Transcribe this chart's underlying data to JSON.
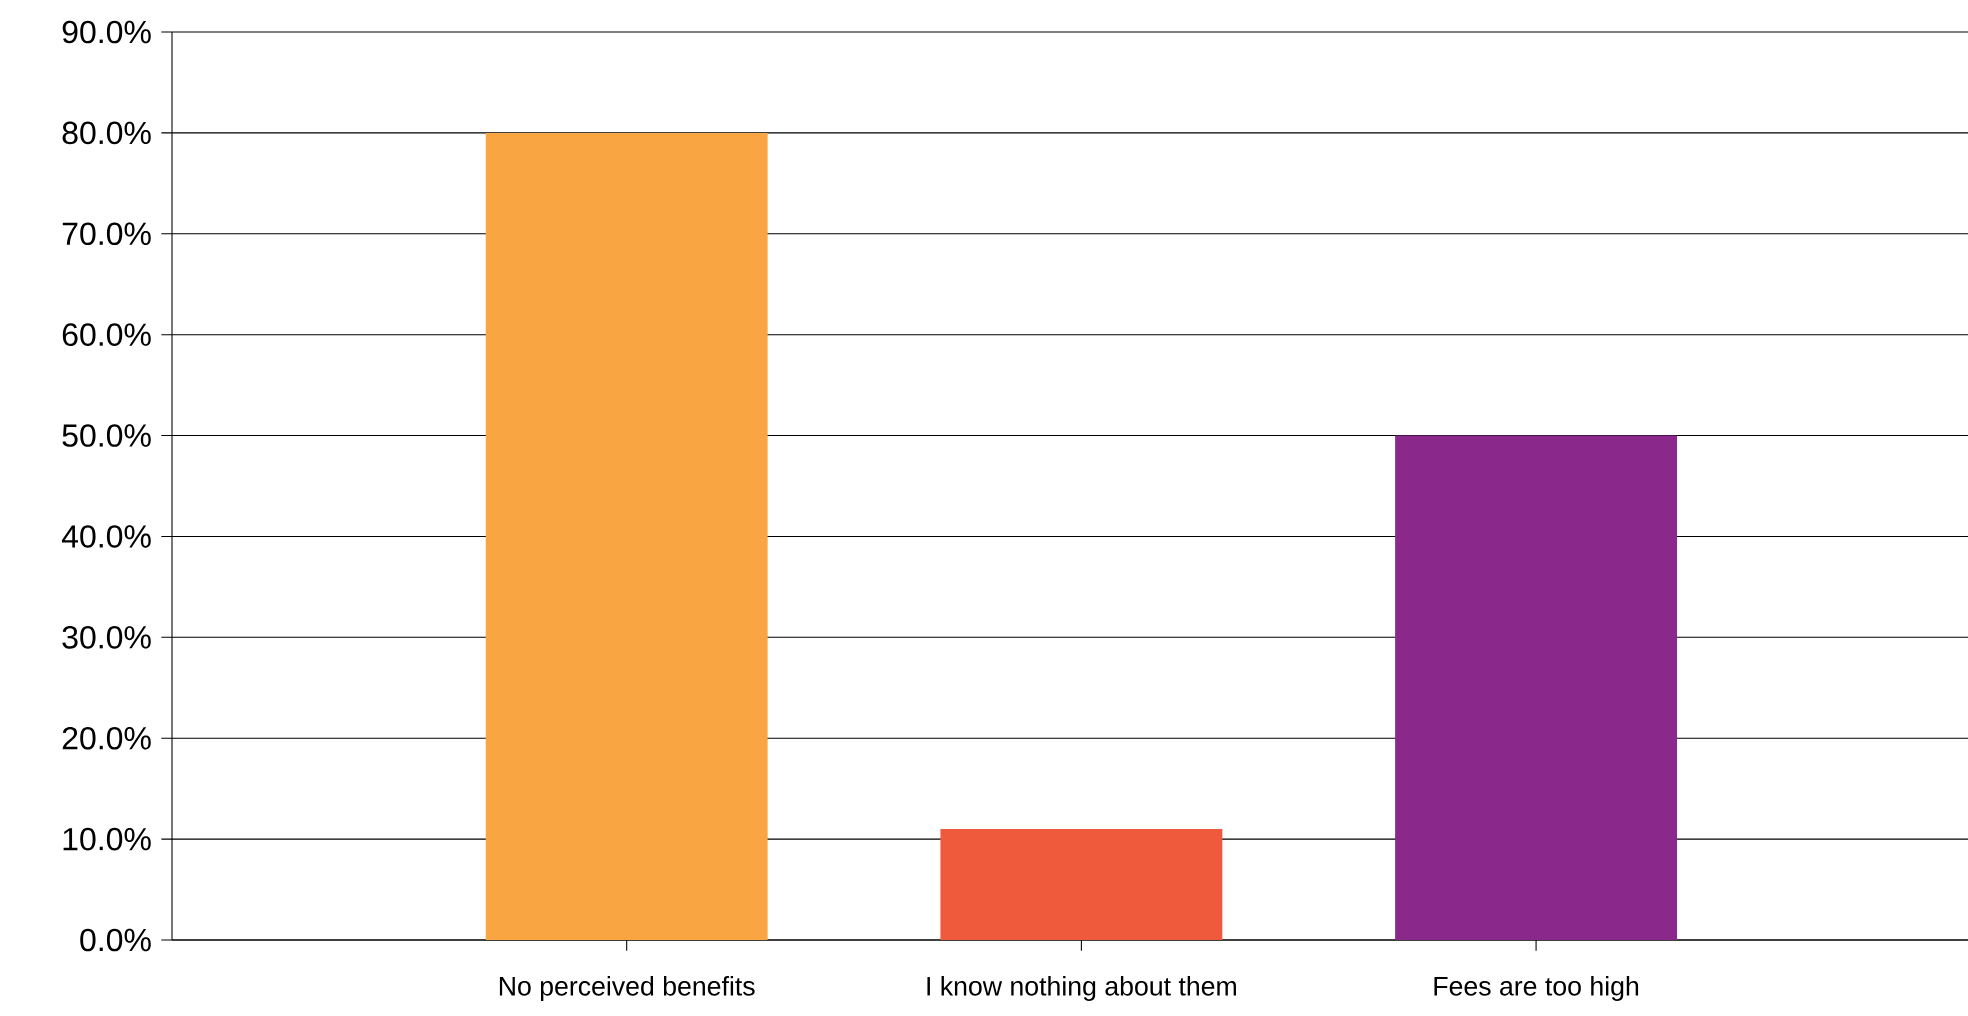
{
  "chart_data": {
    "type": "bar",
    "categories": [
      "No perceived benefits",
      "I know nothing about them",
      "Fees are too high"
    ],
    "values": [
      80.0,
      11.0,
      50.0
    ],
    "colors": [
      "#f9a541",
      "#ef5a3c",
      "#8b288c"
    ],
    "ylim": [
      0,
      90
    ],
    "yticks": [
      {
        "value": 0,
        "label": "0.0%"
      },
      {
        "value": 10,
        "label": "10.0%"
      },
      {
        "value": 20,
        "label": "20.0%"
      },
      {
        "value": 30,
        "label": "30.0%"
      },
      {
        "value": 40,
        "label": "40.0%"
      },
      {
        "value": 50,
        "label": "50.0%"
      },
      {
        "value": 60,
        "label": "60.0%"
      },
      {
        "value": 70,
        "label": "70.0%"
      },
      {
        "value": 80,
        "label": "80.0%"
      },
      {
        "value": 90,
        "label": "90.0%"
      }
    ],
    "grid": "y"
  }
}
